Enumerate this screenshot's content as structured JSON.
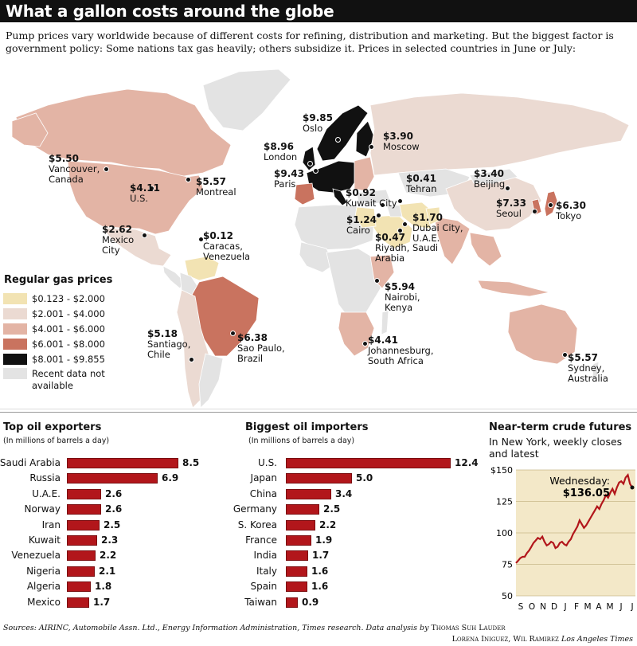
{
  "title": "What a gallon costs around the globe",
  "subtitle": "Pump prices vary worldwide because of different costs for refining, distribution and marketing. But the biggest factor is government policy: Some nations tax gas heavily; others subsidize it. Prices in selected countries in June or July:",
  "colors": {
    "bin1": "#f2e3b3",
    "bin2": "#ebdad2",
    "bin3": "#e3b4a5",
    "bin4": "#c9735f",
    "bin5": "#111111",
    "na": "#e3e3e3",
    "bar": "#b2161b",
    "futures_bg": "#f3e8c8",
    "futures_line": "#b2161b"
  },
  "legend": {
    "title": "Regular gas prices",
    "items": [
      {
        "label": "$0.123 - $2.000",
        "color": "#f2e3b3"
      },
      {
        "label": "$2.001 - $4.000",
        "color": "#ebdad2"
      },
      {
        "label": "$4.001 - $6.000",
        "color": "#e3b4a5"
      },
      {
        "label": "$6.001 - $8.000",
        "color": "#c9735f"
      },
      {
        "label": "$8.001 - $9.855",
        "color": "#111111"
      },
      {
        "label": "Recent data not available",
        "color": "#e3e3e3"
      }
    ]
  },
  "cities": [
    {
      "price": "$9.85",
      "name": "Oslo"
    },
    {
      "price": "$3.90",
      "name": "Moscow"
    },
    {
      "price": "$8.96",
      "name": "London"
    },
    {
      "price": "$9.43",
      "name": "Paris"
    },
    {
      "price": "$5.50",
      "name": "Vancouver, Canada"
    },
    {
      "price": "$4.11",
      "name": "U.S."
    },
    {
      "price": "$5.57",
      "name": "Montreal"
    },
    {
      "price": "$0.41",
      "name": "Tehran"
    },
    {
      "price": "$3.40",
      "name": "Beijing"
    },
    {
      "price": "$0.92",
      "name": "Kuwait City"
    },
    {
      "price": "$7.33",
      "name": "Seoul"
    },
    {
      "price": "$6.30",
      "name": "Tokyo"
    },
    {
      "price": "$1.24",
      "name": "Cairo"
    },
    {
      "price": "$1.70",
      "name": "Dubai City, U.A.E."
    },
    {
      "price": "$0.47",
      "name": "Riyadh, Saudi Arabia"
    },
    {
      "price": "$2.62",
      "name": "Mexico City"
    },
    {
      "price": "$0.12",
      "name": "Caracas, Venezuela"
    },
    {
      "price": "$5.94",
      "name": "Nairobi, Kenya"
    },
    {
      "price": "$5.18",
      "name": "Santiago, Chile"
    },
    {
      "price": "$6.38",
      "name": "Sao Paulo, Brazil"
    },
    {
      "price": "$4.41",
      "name": "Johannesburg, South Africa"
    },
    {
      "price": "$5.57",
      "name": "Sydney, Australia"
    }
  ],
  "exporters": {
    "title": "Top oil exporters",
    "note": "(In millions of barrels a day)"
  },
  "importers": {
    "title": "Biggest oil importers",
    "note": "(In millions of barrels a day)"
  },
  "futures": {
    "title": "Near-term crude futures",
    "subtitle": "In New York, weekly closes and latest",
    "annotation_day": "Wednesday:",
    "annotation_value": "$136.05"
  },
  "chart_data": [
    {
      "type": "bar",
      "title": "Top oil exporters",
      "categories": [
        "Saudi Arabia",
        "Russia",
        "U.A.E.",
        "Norway",
        "Iran",
        "Kuwait",
        "Venezuela",
        "Nigeria",
        "Algeria",
        "Mexico"
      ],
      "values": [
        8.5,
        6.9,
        2.6,
        2.6,
        2.5,
        2.3,
        2.2,
        2.1,
        1.8,
        1.7
      ],
      "value_labels": [
        "8.5",
        "6.9",
        "2.6",
        "2.6",
        "2.5",
        "2.3",
        "2.2",
        "2.1",
        "1.8",
        "1.7"
      ]
    },
    {
      "type": "bar",
      "title": "Biggest oil importers",
      "categories": [
        "U.S.",
        "Japan",
        "China",
        "Germany",
        "S. Korea",
        "France",
        "India",
        "Italy",
        "Spain",
        "Taiwan"
      ],
      "values": [
        12.4,
        5.0,
        3.4,
        2.5,
        2.2,
        1.9,
        1.7,
        1.6,
        1.6,
        0.9
      ],
      "value_labels": [
        "12.4",
        "5.0",
        "3.4",
        "2.5",
        "2.2",
        "1.9",
        "1.7",
        "1.6",
        "1.6",
        "0.9"
      ]
    },
    {
      "type": "line",
      "title": "Near-term crude futures",
      "x_tick_labels": [
        "S",
        "O",
        "N",
        "D",
        "J",
        "F",
        "M",
        "A",
        "M",
        "J",
        "J"
      ],
      "y_tick_labels": [
        "$150",
        "125",
        "100",
        "75",
        "50"
      ],
      "y_ticks": [
        150,
        125,
        100,
        75,
        50
      ],
      "ylim": [
        50,
        150
      ],
      "values": [
        76,
        78,
        80,
        81,
        81,
        84,
        86,
        89,
        92,
        94,
        96,
        95,
        97,
        93,
        90,
        91,
        93,
        92,
        88,
        89,
        92,
        93,
        91,
        90,
        93,
        95,
        99,
        102,
        105,
        110,
        107,
        104,
        106,
        109,
        112,
        115,
        118,
        121,
        119,
        123,
        126,
        130,
        128,
        132,
        135,
        131,
        136,
        140,
        141,
        139,
        144,
        146,
        139,
        136
      ],
      "latest": 136.05
    }
  ]
}
